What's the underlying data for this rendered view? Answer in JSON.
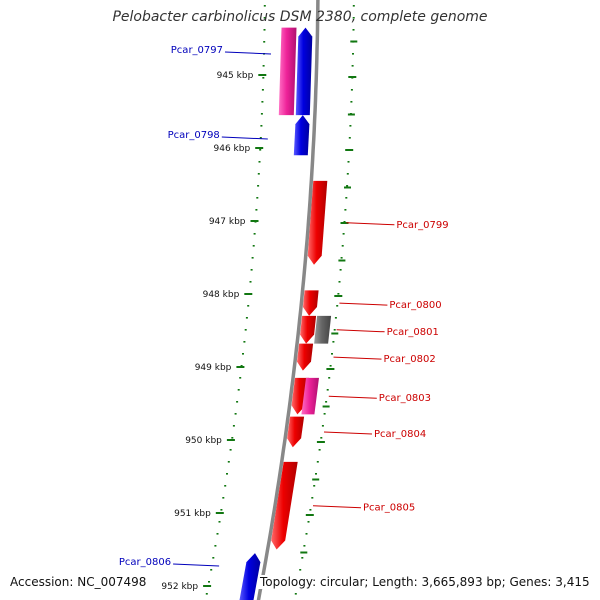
{
  "title": "Pelobacter carbinolicus DSM 2380, complete genome",
  "footer": {
    "accession": "Accession: NC_007498",
    "topology": "Topology: circular; Length: 3,665,893 bp; Genes: 3,415"
  },
  "colors": {
    "forward_cds": "#ee0000",
    "reverse_cds": "#0000dd",
    "pink_feature": "#ee2299",
    "grey_feature": "#666666",
    "tick": "#117711",
    "backbone": "#888888",
    "forward_label": "#cc0000",
    "reverse_label": "#0000bb"
  },
  "scale": {
    "unit": "kbp",
    "ticks": [
      {
        "kbp": 945,
        "label": "945 kbp"
      },
      {
        "kbp": 946,
        "label": "946 kbp"
      },
      {
        "kbp": 947,
        "label": "947 kbp"
      },
      {
        "kbp": 948,
        "label": "948 kbp"
      },
      {
        "kbp": 949,
        "label": "949 kbp"
      },
      {
        "kbp": 950,
        "label": "950 kbp"
      },
      {
        "kbp": 951,
        "label": "951 kbp"
      },
      {
        "kbp": 952,
        "label": "952 kbp"
      }
    ]
  },
  "features": [
    {
      "type": "pink",
      "start": 944.35,
      "end": 945.55,
      "strand": "reverse",
      "label": ""
    },
    {
      "type": "reverse",
      "start": 944.35,
      "end": 945.55,
      "strand": "reverse",
      "label": "Pcar_0797"
    },
    {
      "type": "reverse",
      "start": 945.55,
      "end": 946.1,
      "strand": "reverse",
      "label": "Pcar_0798"
    },
    {
      "type": "forward",
      "start": 946.45,
      "end": 947.6,
      "strand": "forward",
      "label": "Pcar_0799"
    },
    {
      "type": "forward",
      "start": 947.95,
      "end": 948.3,
      "strand": "forward",
      "label": "Pcar_0800"
    },
    {
      "type": "forward",
      "start": 948.3,
      "end": 948.68,
      "strand": "forward",
      "label": "Pcar_0801"
    },
    {
      "type": "grey",
      "start": 948.3,
      "end": 948.68,
      "strand": "forward",
      "label": ""
    },
    {
      "type": "forward",
      "start": 948.68,
      "end": 949.05,
      "strand": "forward",
      "label": "Pcar_0802"
    },
    {
      "type": "forward",
      "start": 949.15,
      "end": 949.65,
      "strand": "forward",
      "label": "Pcar_0803"
    },
    {
      "type": "pink",
      "start": 949.15,
      "end": 949.65,
      "strand": "forward",
      "label": ""
    },
    {
      "type": "forward",
      "start": 949.68,
      "end": 950.1,
      "strand": "forward",
      "label": "Pcar_0804"
    },
    {
      "type": "forward",
      "start": 950.3,
      "end": 951.5,
      "strand": "forward",
      "label": "Pcar_0805"
    },
    {
      "type": "reverse",
      "start": 951.55,
      "end": 952.2,
      "strand": "reverse",
      "label": "Pcar_0806"
    }
  ]
}
